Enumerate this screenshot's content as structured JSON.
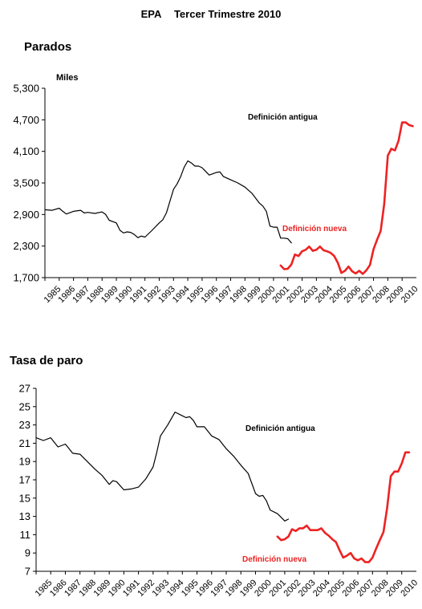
{
  "header": {
    "source": "EPA",
    "period": "Tercer Trimestre 2010"
  },
  "chart_data": [
    {
      "type": "line",
      "title": "Parados",
      "ylabel": "Miles",
      "xlabel": "",
      "ylim": [
        1700,
        5300
      ],
      "yticks": [
        1700,
        2300,
        2900,
        3500,
        4100,
        4700,
        5300
      ],
      "ytick_labels": [
        "1,700",
        "2,300",
        "2,900",
        "3,500",
        "4,100",
        "4,700",
        "5,300"
      ],
      "xlim": [
        1985,
        2011
      ],
      "xticks": [
        1985,
        1986,
        1987,
        1988,
        1989,
        1990,
        1991,
        1992,
        1993,
        1994,
        1995,
        1996,
        1997,
        1998,
        1999,
        2000,
        2001,
        2002,
        2003,
        2004,
        2005,
        2006,
        2007,
        2008,
        2009,
        2010
      ],
      "grid": false,
      "series": [
        {
          "name": "",
          "label": "Definición antigua",
          "color": "#000000",
          "x": [
            1985.0,
            1985.5,
            1986.0,
            1986.25,
            1986.5,
            1987.0,
            1987.5,
            1987.75,
            1988.0,
            1988.5,
            1989.0,
            1989.25,
            1989.5,
            1990.0,
            1990.25,
            1990.5,
            1990.75,
            1991.0,
            1991.25,
            1991.5,
            1991.75,
            1992.0,
            1992.5,
            1993.0,
            1993.25,
            1993.5,
            1994.0,
            1994.25,
            1994.5,
            1994.75,
            1995.0,
            1995.25,
            1995.5,
            1995.75,
            1996.0,
            1996.5,
            1997.0,
            1997.25,
            1997.5,
            1998.0,
            1998.5,
            1999.0,
            1999.5,
            2000.0,
            2000.25,
            2000.5,
            2000.75,
            2001.0,
            2001.25,
            2001.5,
            2001.75,
            2002.0,
            2002.25
          ],
          "values": [
            2990,
            2980,
            3020,
            2960,
            2910,
            2960,
            2980,
            2930,
            2940,
            2920,
            2950,
            2900,
            2790,
            2740,
            2600,
            2550,
            2570,
            2560,
            2520,
            2460,
            2490,
            2470,
            2600,
            2740,
            2800,
            2930,
            3380,
            3480,
            3620,
            3800,
            3920,
            3880,
            3820,
            3820,
            3790,
            3650,
            3700,
            3710,
            3620,
            3560,
            3500,
            3420,
            3300,
            3120,
            3060,
            2960,
            2680,
            2660,
            2660,
            2450,
            2450,
            2440,
            2360
          ]
        },
        {
          "name": "",
          "label": "Definición nueva",
          "color": "#ee2222",
          "x": [
            2001.5,
            2001.75,
            2002.0,
            2002.25,
            2002.5,
            2002.75,
            2003.0,
            2003.25,
            2003.5,
            2003.75,
            2004.0,
            2004.25,
            2004.5,
            2004.75,
            2005.0,
            2005.25,
            2005.5,
            2005.75,
            2006.0,
            2006.25,
            2006.5,
            2006.75,
            2007.0,
            2007.25,
            2007.5,
            2007.75,
            2008.0,
            2008.25,
            2008.5,
            2008.75,
            2009.0,
            2009.25,
            2009.5,
            2009.75,
            2010.0,
            2010.25,
            2010.5,
            2010.75
          ],
          "values": [
            1930,
            1860,
            1870,
            1950,
            2140,
            2110,
            2200,
            2230,
            2290,
            2210,
            2230,
            2290,
            2220,
            2200,
            2170,
            2110,
            1980,
            1790,
            1830,
            1910,
            1820,
            1780,
            1830,
            1770,
            1840,
            1940,
            2240,
            2420,
            2590,
            3100,
            4020,
            4150,
            4120,
            4300,
            4650,
            4650,
            4600,
            4580
          ]
        }
      ],
      "annotations": [
        "Definición antigua",
        "Definición nueva"
      ]
    },
    {
      "type": "line",
      "title": "Tasa de paro",
      "xlabel": "",
      "ylabel": "",
      "ylim": [
        7,
        27
      ],
      "yticks": [
        7,
        9,
        11,
        13,
        15,
        17,
        19,
        21,
        23,
        25,
        27
      ],
      "ytick_labels": [
        "7",
        "9",
        "11",
        "13",
        "15",
        "17",
        "19",
        "21",
        "23",
        "25",
        "27"
      ],
      "xlim": [
        1985,
        2011
      ],
      "xticks": [
        1985,
        1986,
        1987,
        1988,
        1989,
        1990,
        1991,
        1992,
        1993,
        1994,
        1995,
        1996,
        1997,
        1998,
        1999,
        2000,
        2001,
        2002,
        2003,
        2004,
        2005,
        2006,
        2007,
        2008,
        2009,
        2010
      ],
      "grid": false,
      "series": [
        {
          "name": "",
          "label": "Definición antigua",
          "color": "#000000",
          "x": [
            1985.0,
            1985.5,
            1986.0,
            1986.5,
            1987.0,
            1987.5,
            1988.0,
            1988.5,
            1989.0,
            1989.5,
            1990.0,
            1990.25,
            1990.5,
            1991.0,
            1991.5,
            1992.0,
            1992.5,
            1993.0,
            1993.25,
            1993.5,
            1994.0,
            1994.5,
            1995.0,
            1995.25,
            1995.5,
            1995.75,
            1996.0,
            1996.5,
            1997.0,
            1997.5,
            1998.0,
            1998.5,
            1999.0,
            1999.5,
            2000.0,
            2000.25,
            2000.5,
            2000.75,
            2001.0,
            2001.5,
            2001.75,
            2002.0,
            2002.25
          ],
          "values": [
            21.6,
            21.3,
            21.6,
            20.6,
            20.9,
            19.9,
            19.8,
            19.0,
            18.2,
            17.5,
            16.5,
            16.9,
            16.8,
            15.9,
            16.0,
            16.2,
            17.1,
            18.4,
            20.0,
            21.8,
            23.0,
            24.4,
            24.0,
            23.8,
            23.9,
            23.5,
            22.8,
            22.8,
            21.8,
            21.4,
            20.4,
            19.6,
            18.6,
            17.7,
            15.5,
            15.2,
            15.3,
            14.7,
            13.7,
            13.3,
            12.9,
            12.5,
            12.7
          ]
        },
        {
          "name": "",
          "label": "Definición nueva",
          "color": "#ee2222",
          "x": [
            2001.5,
            2001.75,
            2002.0,
            2002.25,
            2002.5,
            2002.75,
            2003.0,
            2003.25,
            2003.5,
            2003.75,
            2004.0,
            2004.25,
            2004.5,
            2004.75,
            2005.0,
            2005.25,
            2005.5,
            2005.75,
            2006.0,
            2006.25,
            2006.5,
            2006.75,
            2007.0,
            2007.25,
            2007.5,
            2007.75,
            2008.0,
            2008.25,
            2008.5,
            2008.75,
            2009.0,
            2009.25,
            2009.5,
            2009.75,
            2010.0,
            2010.25,
            2010.5
          ],
          "values": [
            10.8,
            10.4,
            10.5,
            10.8,
            11.6,
            11.4,
            11.7,
            11.7,
            12.0,
            11.5,
            11.5,
            11.5,
            11.7,
            11.2,
            10.9,
            10.5,
            10.2,
            9.3,
            8.5,
            8.7,
            9.0,
            8.4,
            8.2,
            8.4,
            8.0,
            8.0,
            8.5,
            9.5,
            10.4,
            11.3,
            13.9,
            17.4,
            17.9,
            17.9,
            18.8,
            20.0,
            20.0
          ]
        }
      ],
      "annotations": [
        "Definición antigua",
        "Definición nueva"
      ]
    }
  ]
}
